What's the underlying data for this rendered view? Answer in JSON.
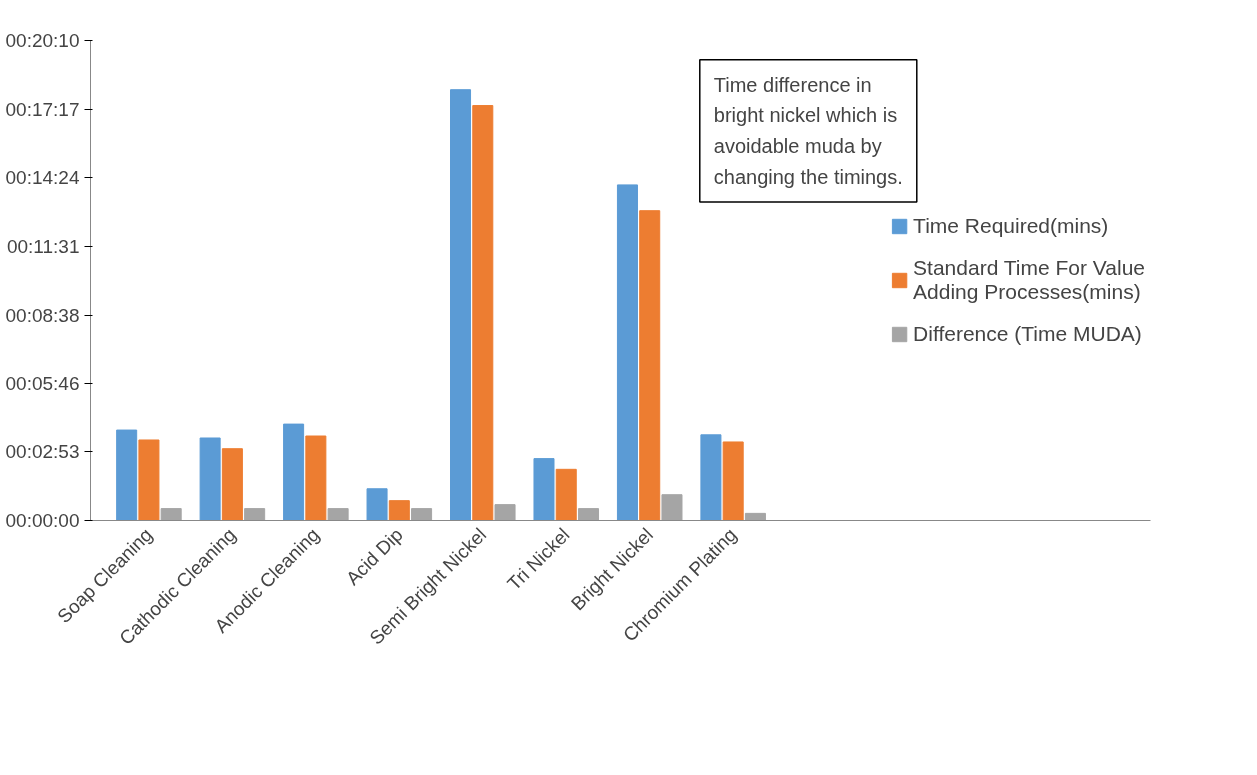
{
  "chart_data": {
    "type": "bar",
    "categories": [
      "Soap Cleaning",
      "Cathodic Cleaning",
      "Anodic Cleaning",
      "Acid Dip",
      "Semi Bright Nickel",
      "Tri Nickel",
      "Bright Nickel",
      "Chromium Plating"
    ],
    "series": [
      {
        "name": "Time Required(mins)",
        "color": "#5b9bd5",
        "values": [
          228,
          208,
          243,
          80,
          1086,
          156,
          846,
          216
        ]
      },
      {
        "name": "Standard Time For Value Adding Processes(mins)",
        "color": "#ed7d31",
        "values": [
          203,
          181,
          213,
          50,
          1046,
          129,
          781,
          198
        ]
      },
      {
        "name": "Difference (Time MUDA)",
        "color": "#a5a5a5",
        "values": [
          30,
          30,
          30,
          30,
          40,
          30,
          65,
          18
        ]
      }
    ],
    "ylim": [
      0,
      1210
    ],
    "yticks": [
      {
        "value": 0,
        "label": "00:00:00"
      },
      {
        "value": 173,
        "label": "00:02:53"
      },
      {
        "value": 346,
        "label": "00:05:46"
      },
      {
        "value": 518,
        "label": "00:08:38"
      },
      {
        "value": 691,
        "label": "00:11:31"
      },
      {
        "value": 864,
        "label": "00:14:24"
      },
      {
        "value": 1037,
        "label": "00:17:17"
      },
      {
        "value": 1210,
        "label": "00:20:10"
      }
    ],
    "annotations": [
      "Time difference in bright nickel which is avoidable muda by changing the timings."
    ],
    "legend": "right",
    "grid": false
  }
}
